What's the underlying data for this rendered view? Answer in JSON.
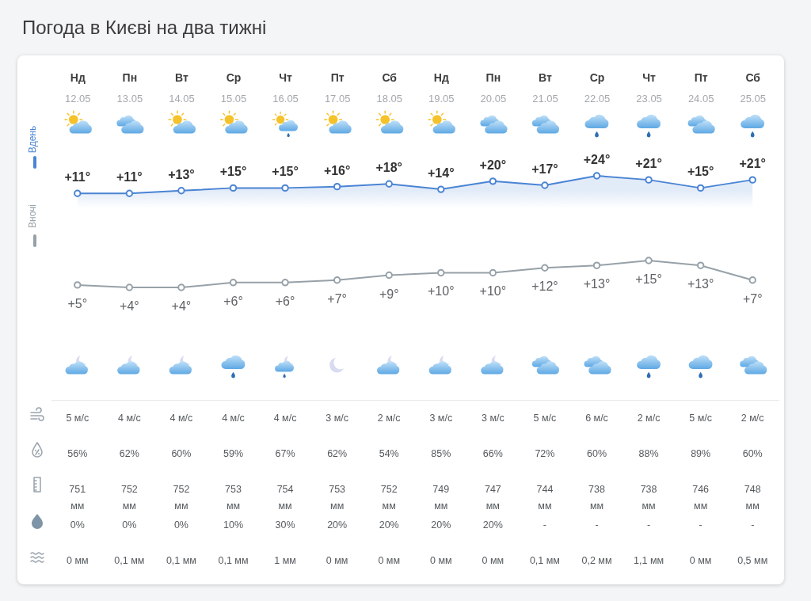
{
  "chart_data": [
    {
      "type": "line",
      "title": "Погода в Києві на два тижні",
      "categories": [
        "Нд\n12.05",
        "Пн\n13.05",
        "Вт\n14.05",
        "Ср\n15.05",
        "Чт\n16.05",
        "Пт\n17.05",
        "Сб\n18.05",
        "Нд\n19.05",
        "Пн\n20.05",
        "Вт\n21.05",
        "Ср\n22.05",
        "Чт\n23.05",
        "Пт\n24.05",
        "Сб\n25.05"
      ],
      "series": [
        {
          "name": "Вдень",
          "type": "area",
          "color": "#4a84d4",
          "values": [
            11,
            11,
            13,
            15,
            15,
            16,
            18,
            14,
            20,
            17,
            24,
            21,
            15,
            21
          ],
          "value_labels": [
            "+11°",
            "+11°",
            "+13°",
            "+15°",
            "+15°",
            "+16°",
            "+18°",
            "+14°",
            "+20°",
            "+17°",
            "+24°",
            "+21°",
            "+15°",
            "+21°"
          ]
        }
      ],
      "tick_labels": "x",
      "legend": "left",
      "marker": "circle",
      "line_style": "solid"
    },
    {
      "type": "line",
      "categories": [
        null,
        null,
        null,
        null,
        null,
        null,
        null,
        null,
        null,
        null,
        null,
        null,
        null,
        null
      ],
      "series": [
        {
          "name": "Вночі",
          "color": "#97a1a8",
          "values": [
            5,
            4,
            4,
            6,
            6,
            7,
            9,
            10,
            10,
            12,
            13,
            15,
            13,
            7
          ],
          "value_labels": [
            "+5°",
            "+4°",
            "+4°",
            "+6°",
            "+6°",
            "+7°",
            "+9°",
            "+10°",
            "+10°",
            "+12°",
            "+13°",
            "+15°",
            "+13°",
            "+7°"
          ]
        }
      ],
      "tick_labels": false,
      "legend": "left",
      "marker": "circle",
      "line_style": "solid"
    },
    {
      "type": "other",
      "annotations": [
        "5 м/с",
        "4 м/с",
        "4 м/с",
        "4 м/с",
        "4 м/с",
        "3 м/с",
        "2 м/с",
        "3 м/с",
        "3 м/с",
        "5 м/с",
        "6 м/с",
        "2 м/с",
        "5 м/с",
        "2 м/с",
        "56%",
        "62%",
        "60%",
        "59%",
        "67%",
        "62%",
        "54%",
        "85%",
        "66%",
        "72%",
        "60%",
        "88%",
        "89%",
        "60%",
        "751\nмм",
        "752\nмм",
        "752\nмм",
        "753\nмм",
        "754\nмм",
        "753\nмм",
        "752\nмм",
        "749\nмм",
        "747\nмм",
        "744\nмм",
        "738\nмм",
        "738\nмм",
        "746\nмм",
        "748\nмм",
        "0%",
        "0%",
        "0%",
        "10%",
        "30%",
        "20%",
        "20%",
        "20%",
        "20%",
        "-",
        "-",
        "-",
        "-",
        "-",
        "0 мм",
        "0,1 мм",
        "0,1 мм",
        "0,1 мм",
        "1 мм",
        "0 мм",
        "0 мм",
        "0 мм",
        "0 мм",
        "0,1 мм",
        "0,2 мм",
        "1,1 мм",
        "0 мм",
        "0,5 мм"
      ]
    }
  ]
}
